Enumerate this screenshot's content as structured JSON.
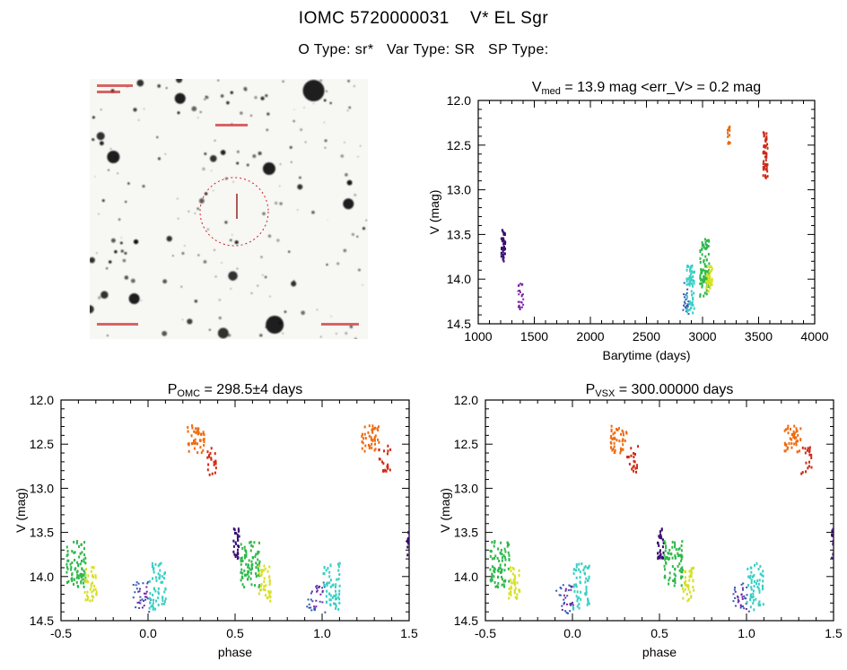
{
  "page": {
    "title": "IOMC 5720000031    V* EL Sgr",
    "subtitle": "O Type: sr*   Var Type: SR   SP Type:"
  },
  "finder": {
    "marker_circle_color": "#cc2222",
    "marker_line_color": "#992222"
  },
  "chart_data": [
    {
      "id": "lightcurve",
      "type": "scatter",
      "title_text": "V_med = 13.9 mag  <err_V> = 0.2 mag",
      "title_segments": [
        {
          "t": "V"
        },
        {
          "t": "med",
          "sub": true
        },
        {
          "t": " = 13.9 mag  <err_V> = 0.2 mag"
        }
      ],
      "xlabel": "Barytime (days)",
      "ylabel": "V (mag)",
      "xlim": [
        1000,
        4000
      ],
      "ylim": [
        12.0,
        14.5
      ],
      "y_inverted": true,
      "grid": false,
      "xticks": {
        "values": [
          1000,
          1500,
          2000,
          2500,
          3000,
          3500,
          4000
        ],
        "labels": [
          "1000",
          "1500",
          "2000",
          "2500",
          "3000",
          "3500",
          "4000"
        ],
        "minor_step": 100
      },
      "yticks": {
        "values": [
          12.0,
          12.5,
          13.0,
          13.5,
          14.0,
          14.5
        ],
        "labels": [
          "12.0",
          "12.5",
          "13.0",
          "13.5",
          "14.0",
          "14.5"
        ],
        "minor_step": 0.1
      },
      "clusters": [
        {
          "name": "epoch1-darkviolet",
          "color": "#3a0d72",
          "x": [
            1205,
            1243
          ],
          "y": [
            13.45,
            13.8
          ],
          "n": 42
        },
        {
          "name": "epoch2-purple",
          "color": "#7a22a8",
          "x": [
            1358,
            1400
          ],
          "y": [
            14.05,
            14.38
          ],
          "n": 26,
          "dot": true
        },
        {
          "name": "epoch3-blue",
          "color": "#3457b2",
          "x": [
            2828,
            2874
          ],
          "y": [
            14.0,
            14.4
          ],
          "n": 24,
          "dot": true
        },
        {
          "name": "epoch4-cyan",
          "color": "#38cfc4",
          "x": [
            2856,
            2932
          ],
          "y": [
            13.85,
            14.38
          ],
          "n": 60
        },
        {
          "name": "epoch5-green",
          "color": "#2eb84b",
          "x": [
            2975,
            3062
          ],
          "y": [
            13.55,
            14.2
          ],
          "n": 85
        },
        {
          "name": "epoch6-yellow",
          "color": "#d6e021",
          "x": [
            3030,
            3088
          ],
          "y": [
            13.85,
            14.16
          ],
          "n": 40
        },
        {
          "name": "epoch7-orange",
          "color": "#ef6a10",
          "x": [
            3222,
            3248
          ],
          "y": [
            12.27,
            12.5
          ],
          "n": 14
        },
        {
          "name": "epoch8-red",
          "color": "#cf2a16",
          "x": [
            3540,
            3582
          ],
          "y": [
            12.3,
            12.87
          ],
          "n": 52
        }
      ]
    },
    {
      "id": "phase-omc",
      "type": "scatter",
      "title_text": "P_OMC = 298.5±4 days",
      "title_segments": [
        {
          "t": "P"
        },
        {
          "t": "OMC",
          "sub": true
        },
        {
          "t": " = 298.5±4 days"
        }
      ],
      "xlabel": "phase",
      "ylabel": "V (mag)",
      "xlim": [
        -0.5,
        1.5
      ],
      "ylim": [
        12.0,
        14.5
      ],
      "y_inverted": true,
      "grid": false,
      "xticks": {
        "values": [
          -0.5,
          0.0,
          0.5,
          1.0,
          1.5
        ],
        "labels": [
          "-0.5",
          "0.0",
          "0.5",
          "1.0",
          "1.5"
        ],
        "minor_step": 0.1
      },
      "yticks": {
        "values": [
          12.0,
          12.5,
          13.0,
          13.5,
          14.0,
          14.5
        ],
        "labels": [
          "12.0",
          "12.5",
          "13.0",
          "13.5",
          "14.0",
          "14.5"
        ],
        "minor_step": 0.1
      },
      "clusters": [
        {
          "name": "green-a",
          "color": "#2eb84b",
          "x": [
            -0.47,
            -0.355
          ],
          "y": [
            13.6,
            14.12
          ],
          "n": 80
        },
        {
          "name": "yellow-a",
          "color": "#d6e021",
          "x": [
            -0.365,
            -0.293
          ],
          "y": [
            13.88,
            14.28
          ],
          "n": 38
        },
        {
          "name": "blue-a",
          "color": "#3457b2",
          "x": [
            -0.085,
            0.015
          ],
          "y": [
            14.05,
            14.42
          ],
          "n": 22,
          "dot": true
        },
        {
          "name": "purple-a",
          "color": "#7a22a8",
          "x": [
            -0.055,
            0.005
          ],
          "y": [
            14.1,
            14.38
          ],
          "n": 12,
          "dot": true
        },
        {
          "name": "cyan-a",
          "color": "#38cfc4",
          "x": [
            0.005,
            0.105
          ],
          "y": [
            13.85,
            14.38
          ],
          "n": 58
        },
        {
          "name": "orange-a",
          "color": "#ef6a10",
          "x": [
            0.225,
            0.33
          ],
          "y": [
            12.29,
            12.6
          ],
          "n": 44
        },
        {
          "name": "red-a",
          "color": "#cf2a16",
          "x": [
            0.325,
            0.395
          ],
          "y": [
            12.52,
            12.85
          ],
          "n": 20
        },
        {
          "name": "darkviolet-a",
          "color": "#3a0d72",
          "x": [
            0.49,
            0.525
          ],
          "y": [
            13.45,
            13.8
          ],
          "n": 30
        },
        {
          "name": "green-b",
          "color": "#2eb84b",
          "x": [
            0.53,
            0.645
          ],
          "y": [
            13.6,
            14.12
          ],
          "n": 80
        },
        {
          "name": "yellow-b",
          "color": "#d6e021",
          "x": [
            0.635,
            0.707
          ],
          "y": [
            13.88,
            14.28
          ],
          "n": 38
        },
        {
          "name": "blue-b",
          "color": "#3457b2",
          "x": [
            0.915,
            1.015
          ],
          "y": [
            14.05,
            14.42
          ],
          "n": 22,
          "dot": true
        },
        {
          "name": "purple-b",
          "color": "#7a22a8",
          "x": [
            0.945,
            1.005
          ],
          "y": [
            14.1,
            14.38
          ],
          "n": 12,
          "dot": true
        },
        {
          "name": "cyan-b",
          "color": "#38cfc4",
          "x": [
            1.005,
            1.105
          ],
          "y": [
            13.85,
            14.38
          ],
          "n": 58
        },
        {
          "name": "orange-b",
          "color": "#ef6a10",
          "x": [
            1.225,
            1.33
          ],
          "y": [
            12.29,
            12.6
          ],
          "n": 44
        },
        {
          "name": "red-b",
          "color": "#cf2a16",
          "x": [
            1.325,
            1.395
          ],
          "y": [
            12.52,
            12.85
          ],
          "n": 20
        },
        {
          "name": "darkviolet-b",
          "color": "#3a0d72",
          "x": [
            1.488,
            1.5
          ],
          "y": [
            13.45,
            13.8
          ],
          "n": 12
        }
      ]
    },
    {
      "id": "phase-vsx",
      "type": "scatter",
      "title_text": "P_VSX = 300.00000 days",
      "title_segments": [
        {
          "t": "P"
        },
        {
          "t": "VSX",
          "sub": true
        },
        {
          "t": " = 300.00000 days"
        }
      ],
      "xlabel": "phase",
      "ylabel": "V (mag)",
      "xlim": [
        -0.5,
        1.5
      ],
      "ylim": [
        12.0,
        14.5
      ],
      "y_inverted": true,
      "grid": false,
      "xticks": {
        "values": [
          -0.5,
          0.0,
          0.5,
          1.0,
          1.5
        ],
        "labels": [
          "-0.5",
          "0.0",
          "0.5",
          "1.0",
          "1.5"
        ],
        "minor_step": 0.1
      },
      "yticks": {
        "values": [
          12.0,
          12.5,
          13.0,
          13.5,
          14.0,
          14.5
        ],
        "labels": [
          "12.0",
          "12.5",
          "13.0",
          "13.5",
          "14.0",
          "14.5"
        ],
        "minor_step": 0.1
      },
      "clusters": [
        {
          "name": "green-a",
          "color": "#2eb84b",
          "x": [
            -0.475,
            -0.36
          ],
          "y": [
            13.6,
            14.12
          ],
          "n": 80
        },
        {
          "name": "yellow-a",
          "color": "#d6e021",
          "x": [
            -0.37,
            -0.3
          ],
          "y": [
            13.88,
            14.28
          ],
          "n": 38
        },
        {
          "name": "blue-a",
          "color": "#3457b2",
          "x": [
            -0.09,
            0.01
          ],
          "y": [
            14.05,
            14.42
          ],
          "n": 22,
          "dot": true
        },
        {
          "name": "purple-a",
          "color": "#7a22a8",
          "x": [
            -0.06,
            0.0
          ],
          "y": [
            14.1,
            14.38
          ],
          "n": 12,
          "dot": true
        },
        {
          "name": "cyan-a",
          "color": "#38cfc4",
          "x": [
            0.0,
            0.1
          ],
          "y": [
            13.85,
            14.38
          ],
          "n": 58
        },
        {
          "name": "orange-a",
          "color": "#ef6a10",
          "x": [
            0.215,
            0.315
          ],
          "y": [
            12.29,
            12.6
          ],
          "n": 44
        },
        {
          "name": "red-a",
          "color": "#cf2a16",
          "x": [
            0.31,
            0.38
          ],
          "y": [
            12.52,
            12.85
          ],
          "n": 20
        },
        {
          "name": "darkviolet-a",
          "color": "#3a0d72",
          "x": [
            0.488,
            0.525
          ],
          "y": [
            13.45,
            13.8
          ],
          "n": 30
        },
        {
          "name": "green-b",
          "color": "#2eb84b",
          "x": [
            0.525,
            0.64
          ],
          "y": [
            13.6,
            14.12
          ],
          "n": 80
        },
        {
          "name": "yellow-b",
          "color": "#d6e021",
          "x": [
            0.63,
            0.7
          ],
          "y": [
            13.88,
            14.28
          ],
          "n": 38
        },
        {
          "name": "blue-b",
          "color": "#3457b2",
          "x": [
            0.91,
            1.01
          ],
          "y": [
            14.05,
            14.42
          ],
          "n": 22,
          "dot": true
        },
        {
          "name": "purple-b",
          "color": "#7a22a8",
          "x": [
            0.94,
            1.0
          ],
          "y": [
            14.1,
            14.38
          ],
          "n": 12,
          "dot": true
        },
        {
          "name": "cyan-b",
          "color": "#38cfc4",
          "x": [
            1.0,
            1.1
          ],
          "y": [
            13.85,
            14.38
          ],
          "n": 58
        },
        {
          "name": "orange-b",
          "color": "#ef6a10",
          "x": [
            1.215,
            1.315
          ],
          "y": [
            12.29,
            12.6
          ],
          "n": 44
        },
        {
          "name": "red-b",
          "color": "#cf2a16",
          "x": [
            1.31,
            1.38
          ],
          "y": [
            12.52,
            12.85
          ],
          "n": 20
        },
        {
          "name": "darkviolet-b",
          "color": "#3a0d72",
          "x": [
            1.488,
            1.5
          ],
          "y": [
            13.45,
            13.8
          ],
          "n": 12
        }
      ]
    }
  ]
}
